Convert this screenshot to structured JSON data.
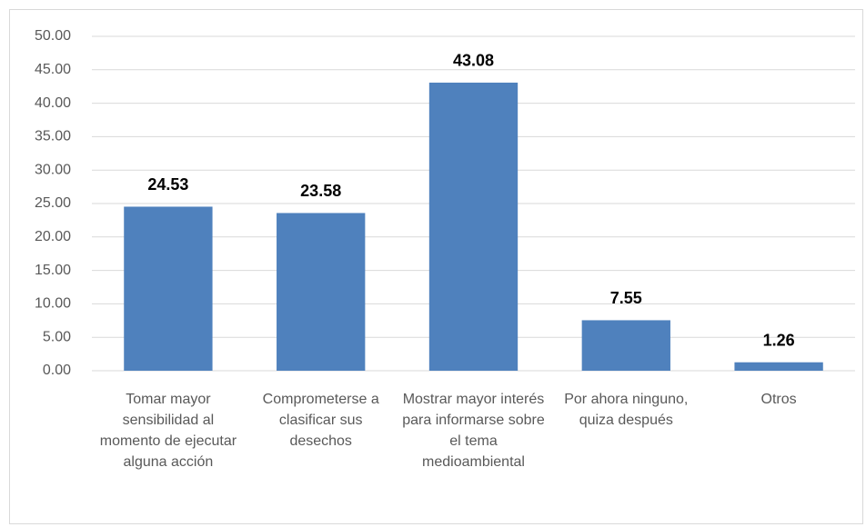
{
  "chart_data": {
    "type": "bar",
    "categories": [
      "Tomar mayor sensibilidad al momento de ejecutar alguna acción",
      "Comprometerse a clasificar sus desechos",
      "Mostrar mayor interés para informarse sobre el tema medioambiental",
      "Por ahora ninguno, quiza después",
      "Otros"
    ],
    "values": [
      24.53,
      23.58,
      43.08,
      7.55,
      1.26
    ],
    "color": "#4f81bd",
    "ylim": [
      0,
      50
    ],
    "yticks": [
      {
        "value": 0,
        "label": "0.00"
      },
      {
        "value": 5,
        "label": "5.00"
      },
      {
        "value": 10,
        "label": "10.00"
      },
      {
        "value": 15,
        "label": "15.00"
      },
      {
        "value": 20,
        "label": "20.00"
      },
      {
        "value": 25,
        "label": "25.00"
      },
      {
        "value": 30,
        "label": "30.00"
      },
      {
        "value": 35,
        "label": "35.00"
      },
      {
        "value": 40,
        "label": "40.00"
      },
      {
        "value": 45,
        "label": "45.00"
      },
      {
        "value": 50,
        "label": "50.00"
      }
    ],
    "grid": true
  }
}
